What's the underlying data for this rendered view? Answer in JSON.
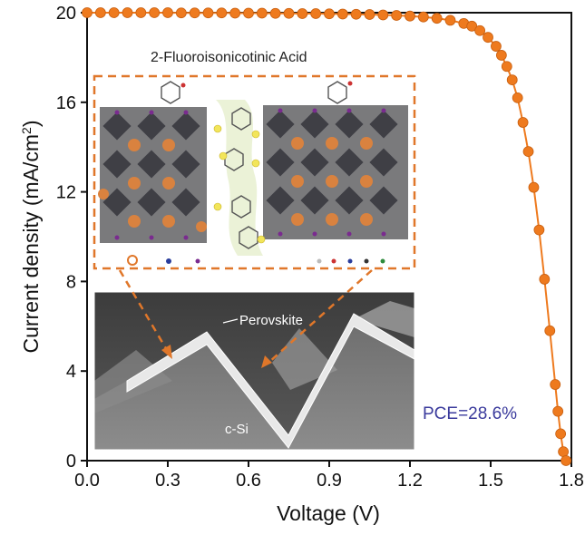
{
  "chart_data": {
    "type": "line",
    "xlabel": "Voltage (V)",
    "ylabel": "Current density (mA/cm",
    "ylabel_sup": "2",
    "ylabel_suffix": ")",
    "xlim": [
      0.0,
      1.8
    ],
    "ylim": [
      0,
      20
    ],
    "x_ticks": [
      "0.0",
      "0.3",
      "0.6",
      "0.9",
      "1.2",
      "1.5",
      "1.8"
    ],
    "y_ticks": [
      "0",
      "4",
      "8",
      "12",
      "16",
      "20"
    ],
    "grid": false,
    "series": [
      {
        "color": "#ee7a1e",
        "marker": "circle",
        "x": [
          0.0,
          0.05,
          0.1,
          0.15,
          0.2,
          0.25,
          0.3,
          0.35,
          0.4,
          0.45,
          0.5,
          0.55,
          0.6,
          0.65,
          0.7,
          0.75,
          0.8,
          0.85,
          0.9,
          0.95,
          1.0,
          1.05,
          1.1,
          1.15,
          1.2,
          1.25,
          1.3,
          1.35,
          1.4,
          1.43,
          1.46,
          1.49,
          1.52,
          1.54,
          1.56,
          1.58,
          1.6,
          1.62,
          1.64,
          1.66,
          1.68,
          1.7,
          1.72,
          1.74,
          1.75,
          1.76,
          1.77,
          1.78
        ],
        "y": [
          20.0,
          20.0,
          20.0,
          20.0,
          20.0,
          20.0,
          20.0,
          19.99,
          19.99,
          19.99,
          19.99,
          19.98,
          19.98,
          19.98,
          19.97,
          19.97,
          19.96,
          19.96,
          19.95,
          19.94,
          19.93,
          19.92,
          19.9,
          19.88,
          19.85,
          19.81,
          19.75,
          19.66,
          19.52,
          19.4,
          19.2,
          18.9,
          18.5,
          18.1,
          17.6,
          17.0,
          16.2,
          15.1,
          13.8,
          12.2,
          10.3,
          8.1,
          5.8,
          3.4,
          2.2,
          1.2,
          0.4,
          0.0
        ]
      }
    ],
    "annotations": {
      "molecule_name": "2-Fluoroisonicotinic Acid",
      "pce": "PCE=28.6%"
    }
  },
  "inset": {
    "perovskite_label": "Perovskite",
    "silicon_label": "c-Si"
  },
  "colors": {
    "accent": "#ee7a1e",
    "pce_text": "#3a3a9c",
    "dashed_box": "#e0772a"
  }
}
